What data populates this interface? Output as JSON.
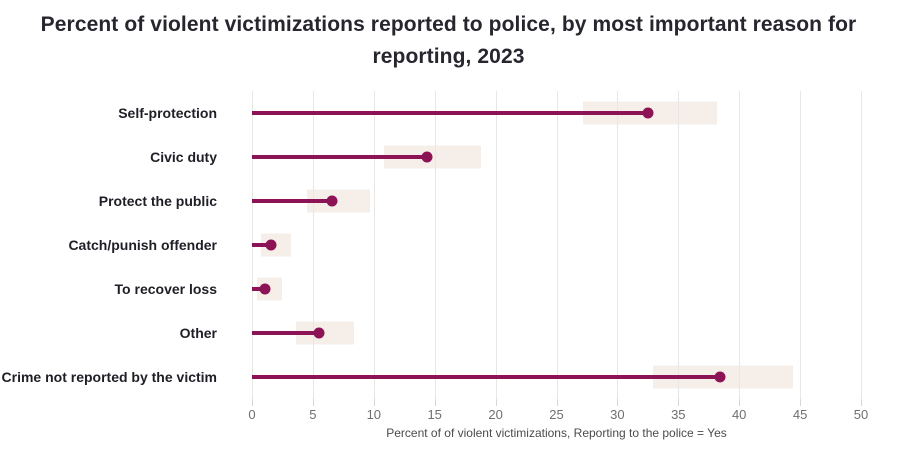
{
  "title": "Percent of violent victimizations reported to police, by most important reason for reporting, 2023",
  "colors": {
    "accent": "#8c1355",
    "band": "#f6efe9",
    "gridline": "#e8e7e5",
    "tick_mark": "#d9d7d5",
    "tick_label_text": "#6f6f6f",
    "title_text": "#27262e",
    "category_label_text": "#1f1e26",
    "axis_label_text": "#4b4b4b",
    "background": "#ffffff"
  },
  "chart_data": {
    "type": "bar",
    "variant": "lollipop-with-confidence-bands",
    "orientation": "horizontal",
    "title": "Percent of violent victimizations reported to police, by most important reason for reporting, 2023",
    "categories": [
      "Self-protection",
      "Civic duty",
      "Protect the public",
      "Catch/punish offender",
      "To recover loss",
      "Other",
      "Crime not reported by the victim"
    ],
    "values": [
      32.5,
      14.4,
      6.6,
      1.6,
      1.1,
      5.5,
      38.4
    ],
    "ci_low": [
      27.2,
      10.8,
      4.5,
      0.7,
      0.4,
      3.6,
      32.9
    ],
    "ci_high": [
      38.2,
      18.8,
      9.7,
      3.2,
      2.5,
      8.4,
      44.4
    ],
    "xlabel": "Percent of of violent victimizations, Reporting to the police = Yes",
    "ylabel": "",
    "xlim": [
      0,
      50
    ],
    "xticks": [
      0,
      5,
      10,
      15,
      20,
      25,
      30,
      35,
      40,
      45,
      50
    ],
    "grid": "vertical-only",
    "legend": "none"
  }
}
